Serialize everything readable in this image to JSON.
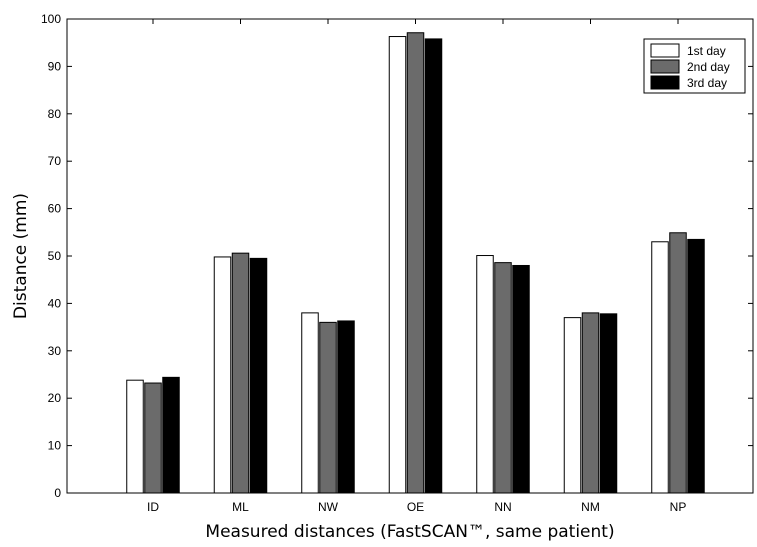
{
  "chart_data": {
    "type": "bar",
    "xlabel": "Measured distances (FastSCAN™, same patient)",
    "ylabel": "Distance (mm)",
    "categories": [
      "ID",
      "ML",
      "NW",
      "OE",
      "NN",
      "NM",
      "NP"
    ],
    "series": [
      {
        "name": "1st day",
        "color": "#ffffff",
        "values": [
          23.8,
          49.8,
          38.0,
          96.3,
          50.1,
          37.0,
          53.0
        ]
      },
      {
        "name": "2nd day",
        "color": "#6b6b6b",
        "values": [
          23.2,
          50.6,
          36.0,
          97.1,
          48.6,
          38.0,
          54.9
        ]
      },
      {
        "name": "3rd day",
        "color": "#000000",
        "values": [
          24.4,
          49.5,
          36.3,
          95.8,
          48.0,
          37.8,
          53.5
        ]
      }
    ],
    "ylim": [
      0,
      100
    ],
    "yticks": [
      0,
      10,
      20,
      30,
      40,
      50,
      60,
      70,
      80,
      90,
      100
    ],
    "grid": false,
    "legend_position": "top-right"
  }
}
